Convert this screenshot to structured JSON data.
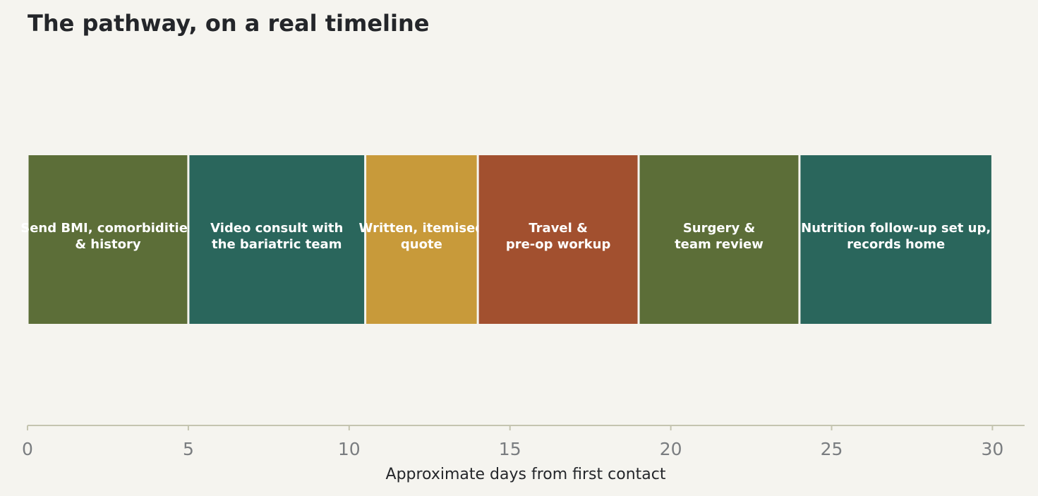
{
  "chart_data": {
    "type": "bar",
    "orientation": "horizontal-stacked-timeline",
    "title": "The pathway, on a real timeline",
    "xlabel": "Approximate days from first contact",
    "ylabel": "",
    "xlim": [
      0,
      31
    ],
    "xticks": [
      0,
      5,
      10,
      15,
      20,
      25,
      30
    ],
    "grid": false,
    "legend": "none",
    "segments": [
      {
        "label_lines": [
          "Send BMI, comorbidities",
          "& history"
        ],
        "start": 0,
        "end": 5,
        "color": "#5c6e38"
      },
      {
        "label_lines": [
          "Video consult with",
          "the bariatric team"
        ],
        "start": 5,
        "end": 10.5,
        "color": "#2a665c"
      },
      {
        "label_lines": [
          "Written, itemised",
          "quote"
        ],
        "start": 10.5,
        "end": 14,
        "color": "#c89a3a"
      },
      {
        "label_lines": [
          "Travel &",
          "pre-op workup"
        ],
        "start": 14,
        "end": 19,
        "color": "#a2502f"
      },
      {
        "label_lines": [
          "Surgery &",
          "team review"
        ],
        "start": 19,
        "end": 24,
        "color": "#5c6e38"
      },
      {
        "label_lines": [
          "Nutrition follow-up set up,",
          "records home"
        ],
        "start": 24,
        "end": 30,
        "color": "#2a665c"
      }
    ],
    "colors": {
      "background": "#f5f4ef",
      "axis_line": "#c4c4b0",
      "tick_text": "#7a7d80",
      "title_text": "#24262a",
      "segment_text": "#ffffff",
      "segment_gap": "#ffffff"
    }
  }
}
